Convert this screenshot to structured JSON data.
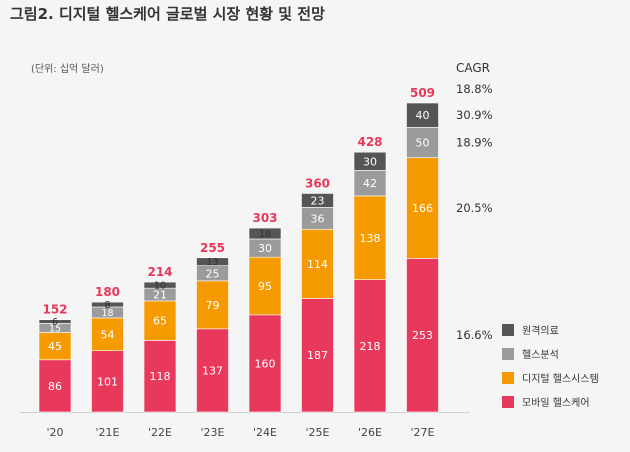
{
  "page": {
    "title": "그림2. 디지털 헬스케어 글로벌 시장 현황 및 전망",
    "unit_note": "(단위: 십억 달러)"
  },
  "chart_data": {
    "type": "bar",
    "stacked": true,
    "categories": [
      "'20",
      "'21E",
      "'22E",
      "'23E",
      "'24E",
      "'25E",
      "'26E",
      "'27E"
    ],
    "series": [
      {
        "name": "모바일 헬스케어",
        "color": "#e8385c",
        "values": [
          86,
          101,
          118,
          137,
          160,
          187,
          218,
          253
        ]
      },
      {
        "name": "디지털 헬스시스템",
        "color": "#f59a00",
        "values": [
          45,
          54,
          65,
          79,
          95,
          114,
          138,
          166
        ]
      },
      {
        "name": "헬스분석",
        "color": "#9b9b9b",
        "values": [
          15,
          18,
          21,
          25,
          30,
          36,
          42,
          50
        ]
      },
      {
        "name": "원격의료",
        "color": "#555555",
        "values": [
          6,
          8,
          10,
          13,
          18,
          23,
          30,
          40
        ]
      }
    ],
    "totals": [
      152,
      180,
      214,
      255,
      303,
      360,
      428,
      509
    ],
    "total_color": "#e8385c",
    "cagr_title": "CAGR",
    "cagr": [
      {
        "label": "18.8%",
        "row": "total"
      },
      {
        "label": "30.9%",
        "series": "원격의료"
      },
      {
        "label": "18.9%",
        "series": "헬스분석"
      },
      {
        "label": "20.5%",
        "series": "디지털 헬스시스템"
      },
      {
        "label": "16.6%",
        "series": "모바일 헬스케어"
      }
    ],
    "legend_order": [
      "원격의료",
      "헬스분석",
      "디지털 헬스시스템",
      "모바일 헬스케어"
    ],
    "legend_position": "right",
    "ylim": [
      0,
      509
    ]
  }
}
